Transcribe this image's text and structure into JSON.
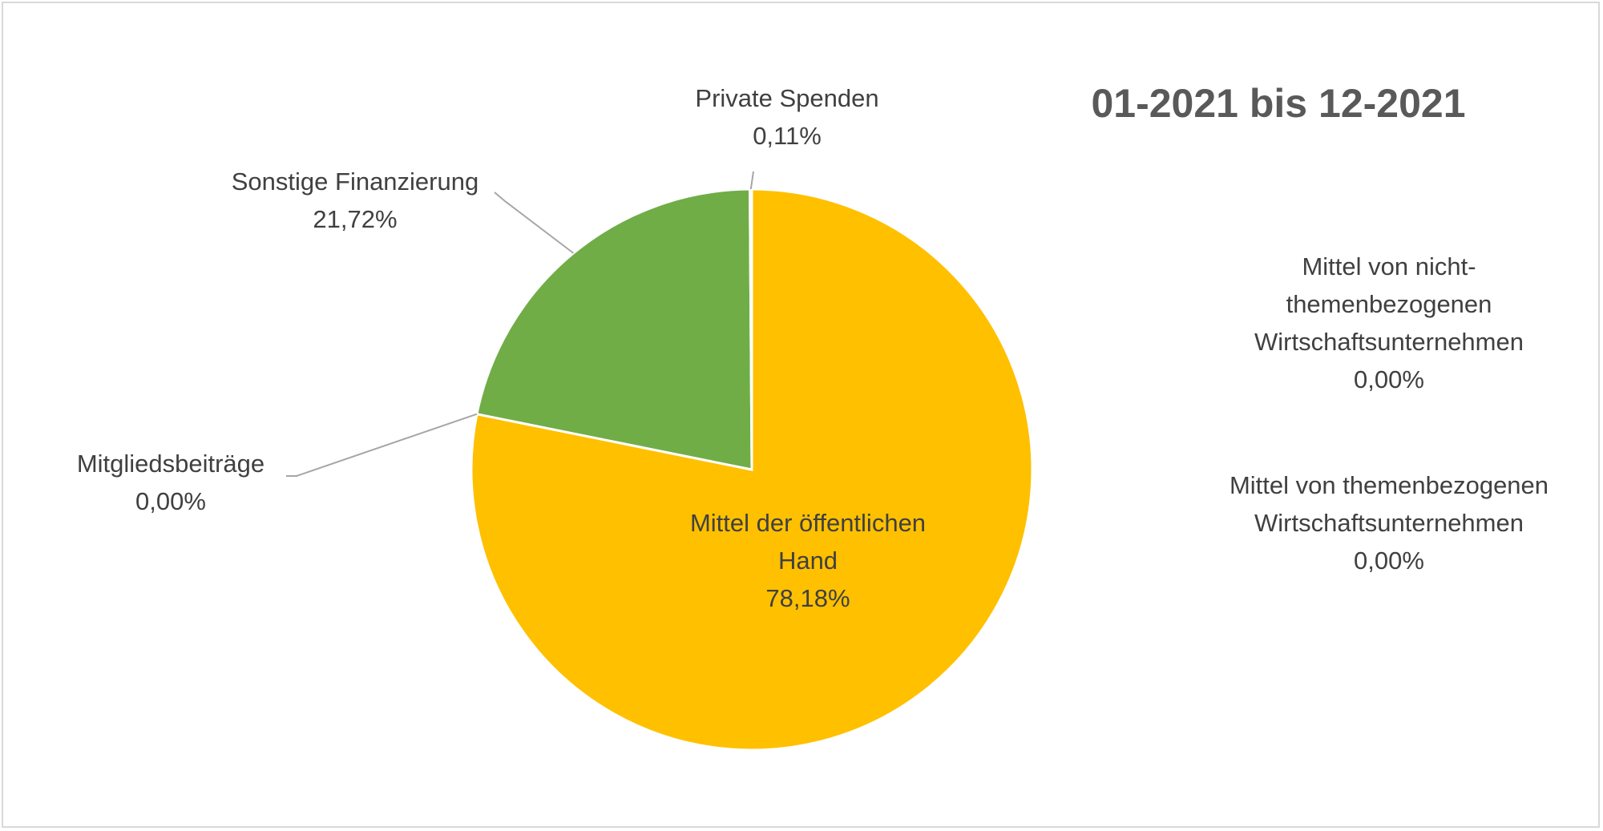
{
  "chart_data": {
    "type": "pie",
    "title": "01-2021 bis 12-2021",
    "slices": [
      {
        "name": "Mittel der öffentlichen Hand",
        "value": 78.18,
        "label": "78,18%",
        "color": "#FFC000"
      },
      {
        "name": "Mitgliedsbeiträge",
        "value": 0.0,
        "label": "0,00%",
        "color": "#4472C4"
      },
      {
        "name": "Sonstige Finanzierung",
        "value": 21.72,
        "label": "21,72%",
        "color": "#70AD47"
      },
      {
        "name": "Private Spenden",
        "value": 0.11,
        "label": "0,11%",
        "color": "#A5A5A5"
      },
      {
        "name": "Mittel von nicht-themenbezogenen Wirtschaftsunternehmen",
        "value": 0.0,
        "label": "0,00%",
        "color": "#5B9BD5"
      },
      {
        "name": "Mittel von themenbezogenen Wirtschaftsunternehmen",
        "value": 0.0,
        "label": "0,00%",
        "color": "#ED7D31"
      }
    ],
    "legend": "none",
    "data_labels": [
      {
        "lines": [
          "Mittel der öffentlichen",
          "Hand"
        ],
        "value": "78,18%"
      },
      {
        "lines": [
          "Mitgliedsbeiträge"
        ],
        "value": "0,00%"
      },
      {
        "lines": [
          "Sonstige Finanzierung"
        ],
        "value": "21,72%"
      },
      {
        "lines": [
          "Private Spenden"
        ],
        "value": "0,11%"
      },
      {
        "lines": [
          "Mittel von nicht-",
          "themenbezogenen",
          "Wirtschaftsunternehmen"
        ],
        "value": "0,00%"
      },
      {
        "lines": [
          "Mittel von themenbezogenen",
          "Wirtschaftsunternehmen"
        ],
        "value": "0,00%"
      }
    ]
  }
}
